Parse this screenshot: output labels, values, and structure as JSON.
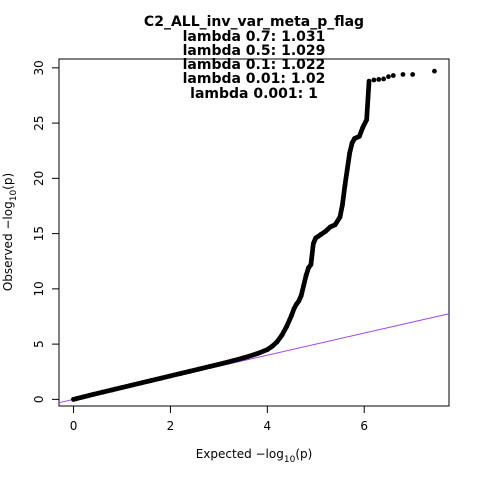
{
  "chart_data": {
    "type": "scatter",
    "title_lines": [
      "C2_ALL_inv_var_meta_p_flag",
      "lambda 0.7: 1.031",
      "lambda 0.5: 1.029",
      "lambda 0.1: 1.022",
      "lambda 0.01: 1.02",
      "lambda 0.001: 1"
    ],
    "xlabel": {
      "prefix": "Expected  −log",
      "sub": "10",
      "suffix": "(p)"
    },
    "ylabel": {
      "prefix": "Observed  −log",
      "sub": "10",
      "suffix": "(p)"
    },
    "xlim": [
      -0.3,
      7.75
    ],
    "ylim": [
      -0.6,
      30.8
    ],
    "x_ticks": [
      0,
      2,
      4,
      6
    ],
    "y_ticks": [
      0,
      5,
      10,
      15,
      20,
      25,
      30
    ],
    "reference_line": {
      "slope": 1,
      "intercept": 0,
      "color": "#a040ff"
    },
    "point_color": "#000000",
    "points": [
      [
        0.0,
        0.0
      ],
      [
        0.2,
        0.22
      ],
      [
        0.4,
        0.44
      ],
      [
        0.6,
        0.65
      ],
      [
        0.8,
        0.86
      ],
      [
        1.0,
        1.07
      ],
      [
        1.2,
        1.28
      ],
      [
        1.4,
        1.49
      ],
      [
        1.6,
        1.7
      ],
      [
        1.8,
        1.91
      ],
      [
        2.0,
        2.12
      ],
      [
        2.2,
        2.33
      ],
      [
        2.4,
        2.54
      ],
      [
        2.6,
        2.75
      ],
      [
        2.8,
        2.96
      ],
      [
        3.0,
        3.17
      ],
      [
        3.2,
        3.39
      ],
      [
        3.4,
        3.62
      ],
      [
        3.6,
        3.87
      ],
      [
        3.8,
        4.15
      ],
      [
        4.0,
        4.5
      ],
      [
        4.1,
        4.8
      ],
      [
        4.2,
        5.2
      ],
      [
        4.3,
        5.8
      ],
      [
        4.4,
        6.6
      ],
      [
        4.5,
        7.6
      ],
      [
        4.55,
        8.2
      ],
      [
        4.6,
        8.6
      ],
      [
        4.65,
        8.9
      ],
      [
        4.7,
        9.4
      ],
      [
        4.75,
        10.3
      ],
      [
        4.8,
        11.2
      ],
      [
        4.85,
        11.9
      ],
      [
        4.9,
        12.2
      ],
      [
        4.95,
        14.1
      ],
      [
        5.0,
        14.6
      ],
      [
        5.1,
        14.9
      ],
      [
        5.2,
        15.2
      ],
      [
        5.3,
        15.6
      ],
      [
        5.4,
        15.8
      ],
      [
        5.5,
        16.5
      ],
      [
        5.55,
        17.6
      ],
      [
        5.6,
        19.3
      ],
      [
        5.65,
        20.8
      ],
      [
        5.7,
        22.3
      ],
      [
        5.75,
        23.2
      ],
      [
        5.8,
        23.6
      ],
      [
        5.9,
        23.8
      ],
      [
        5.97,
        24.6
      ],
      [
        6.05,
        25.3
      ],
      [
        6.1,
        28.8
      ],
      [
        6.2,
        28.9
      ],
      [
        6.3,
        28.95
      ],
      [
        6.4,
        29.0
      ],
      [
        6.5,
        29.2
      ],
      [
        6.6,
        29.3
      ],
      [
        6.8,
        29.4
      ],
      [
        7.0,
        29.4
      ],
      [
        7.45,
        29.7
      ]
    ]
  }
}
